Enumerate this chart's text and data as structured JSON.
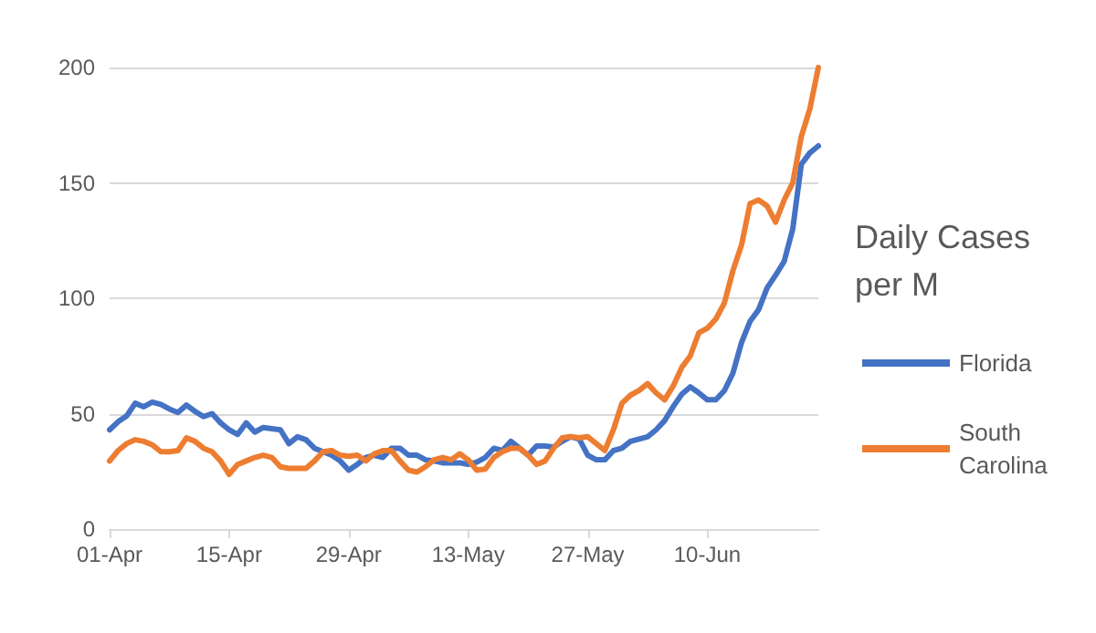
{
  "chart_data": {
    "type": "line",
    "legend_title": "Daily Cases per M",
    "categories": [
      "01-Apr",
      null,
      null,
      null,
      null,
      null,
      null,
      null,
      null,
      null,
      null,
      null,
      null,
      null,
      "15-Apr",
      null,
      null,
      null,
      null,
      null,
      null,
      null,
      null,
      null,
      null,
      null,
      null,
      null,
      "29-Apr",
      null,
      null,
      null,
      null,
      null,
      null,
      null,
      null,
      null,
      null,
      null,
      null,
      null,
      "13-May",
      null,
      null,
      null,
      null,
      null,
      null,
      null,
      null,
      null,
      null,
      null,
      null,
      null,
      "27-May",
      null,
      null,
      null,
      null,
      null,
      null,
      null,
      null,
      null,
      null,
      null,
      null,
      null,
      "10-Jun",
      null,
      null,
      null,
      null,
      null,
      null,
      null,
      null,
      null,
      null,
      null,
      null,
      null
    ],
    "series": [
      {
        "name": "Florida",
        "color": "#4472c4",
        "values": [
          43,
          46.5,
          49,
          54.5,
          53,
          55,
          54,
          52,
          50.5,
          53.7,
          51,
          48.7,
          50,
          46,
          43,
          41,
          46,
          42,
          44,
          43.5,
          43,
          37,
          40,
          38.7,
          35,
          33.5,
          32,
          29.5,
          25.5,
          28,
          31,
          32,
          31,
          35,
          35,
          32,
          32,
          30,
          29.5,
          28.7,
          28.7,
          28.7,
          28,
          29,
          31,
          35,
          34,
          38,
          35,
          32,
          36,
          36,
          35.5,
          38,
          40,
          39,
          32,
          30,
          30,
          34,
          35,
          38,
          39,
          40,
          43,
          47,
          53,
          58.4,
          61.6,
          59,
          56,
          56,
          60,
          67.6,
          80.8,
          90,
          95,
          104.5,
          110,
          116,
          130,
          158,
          163,
          166
        ]
      },
      {
        "name": "South Carolina",
        "color": "#ed7d31",
        "values": [
          29.5,
          34,
          37,
          38.7,
          38,
          36.5,
          33.5,
          33.5,
          34,
          39.5,
          38,
          35,
          33.5,
          29.5,
          23.7,
          28,
          29.5,
          31,
          32,
          31,
          27,
          26.3,
          26.3,
          26.3,
          29.5,
          33.5,
          34,
          32,
          31.5,
          32,
          29.5,
          32.6,
          34,
          34,
          29.5,
          25.5,
          24.7,
          27,
          30,
          31,
          30,
          32.6,
          30,
          25.5,
          26,
          31,
          33.5,
          35,
          35,
          32,
          28,
          29.5,
          35,
          39.5,
          40,
          39.5,
          40,
          37,
          34,
          43,
          54.5,
          58,
          60,
          63,
          59,
          56,
          62,
          70,
          75,
          85,
          87,
          91,
          98,
          112,
          123,
          141,
          142.6,
          140,
          133,
          142.6,
          150,
          170,
          182,
          200
        ]
      }
    ],
    "ylim": [
      0,
      200
    ],
    "yticks": [
      0,
      50,
      100,
      150,
      200
    ],
    "grid": "y",
    "legend": "right",
    "marker": "none",
    "line_style": "solid"
  }
}
